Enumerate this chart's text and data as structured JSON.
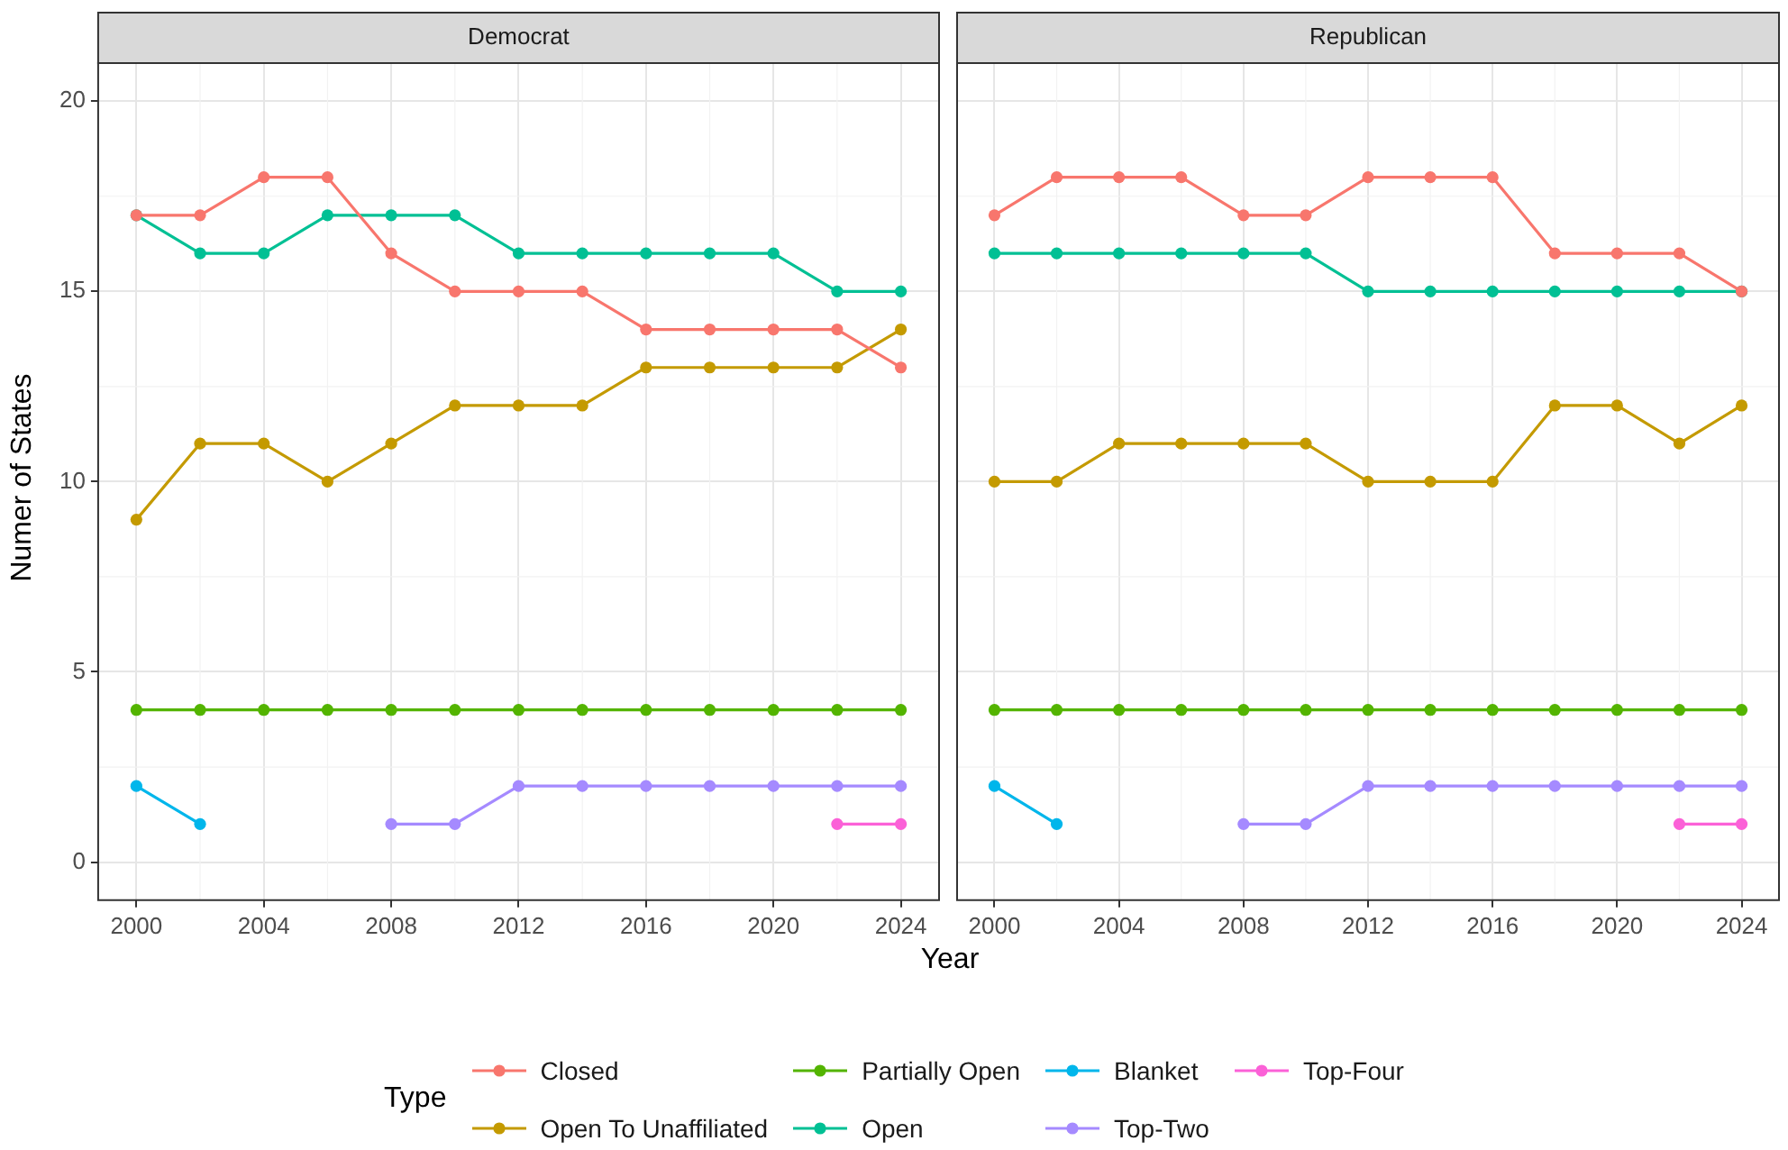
{
  "chart_data": [
    {
      "type": "line",
      "title": "Democrat",
      "xlabel": "Year",
      "ylabel": "Numer of States",
      "legend_title": "Type",
      "legend": "bottom",
      "marker": "circle",
      "line_style": "solid",
      "grid": true,
      "x": [
        2000,
        2002,
        2004,
        2006,
        2008,
        2010,
        2012,
        2014,
        2016,
        2018,
        2020,
        2022,
        2024
      ],
      "xlim": [
        1998.8,
        2025.2
      ],
      "xticks": [
        2000,
        2004,
        2008,
        2012,
        2016,
        2020,
        2024
      ],
      "ylim": [
        -1,
        21
      ],
      "yticks": [
        0,
        5,
        10,
        15,
        20
      ],
      "series": [
        {
          "name": "Closed",
          "color": "#f8766d",
          "values": [
            17,
            17,
            18,
            18,
            16,
            15,
            15,
            15,
            14,
            14,
            14,
            14,
            13
          ]
        },
        {
          "name": "Open To Unaffiliated",
          "color": "#c49a00",
          "values": [
            9,
            11,
            11,
            10,
            11,
            12,
            12,
            12,
            13,
            13,
            13,
            13,
            14
          ]
        },
        {
          "name": "Partially Open",
          "color": "#53b400",
          "values": [
            4,
            4,
            4,
            4,
            4,
            4,
            4,
            4,
            4,
            4,
            4,
            4,
            4
          ]
        },
        {
          "name": "Open",
          "color": "#00c094",
          "values": [
            17,
            16,
            16,
            17,
            17,
            17,
            16,
            16,
            16,
            16,
            16,
            15,
            15
          ]
        },
        {
          "name": "Blanket",
          "color": "#00b6eb",
          "values": [
            2,
            1,
            null,
            null,
            null,
            null,
            null,
            null,
            null,
            null,
            null,
            null,
            null
          ]
        },
        {
          "name": "Top-Two",
          "color": "#a58aff",
          "values": [
            null,
            null,
            null,
            null,
            1,
            1,
            2,
            2,
            2,
            2,
            2,
            2,
            2
          ]
        },
        {
          "name": "Top-Four",
          "color": "#fb61d7",
          "values": [
            null,
            null,
            null,
            null,
            null,
            null,
            null,
            null,
            null,
            null,
            null,
            1,
            1
          ]
        }
      ]
    },
    {
      "type": "line",
      "title": "Republican",
      "marker": "circle",
      "line_style": "solid",
      "grid": true,
      "tick_labels": "x",
      "x": [
        2000,
        2002,
        2004,
        2006,
        2008,
        2010,
        2012,
        2014,
        2016,
        2018,
        2020,
        2022,
        2024
      ],
      "xlim": [
        1998.8,
        2025.2
      ],
      "xticks": [
        2000,
        2004,
        2008,
        2012,
        2016,
        2020,
        2024
      ],
      "ylim": [
        -1,
        21
      ],
      "yticks": [
        0,
        5,
        10,
        15,
        20
      ],
      "series": [
        {
          "color": "#f8766d",
          "values": [
            17,
            18,
            18,
            18,
            17,
            17,
            18,
            18,
            18,
            16,
            16,
            16,
            15
          ]
        },
        {
          "color": "#c49a00",
          "values": [
            10,
            10,
            11,
            11,
            11,
            11,
            10,
            10,
            10,
            12,
            12,
            11,
            12
          ]
        },
        {
          "color": "#53b400",
          "values": [
            4,
            4,
            4,
            4,
            4,
            4,
            4,
            4,
            4,
            4,
            4,
            4,
            4
          ]
        },
        {
          "color": "#00c094",
          "values": [
            16,
            16,
            16,
            16,
            16,
            16,
            15,
            15,
            15,
            15,
            15,
            15,
            15
          ]
        },
        {
          "color": "#00b6eb",
          "values": [
            2,
            1,
            null,
            null,
            null,
            null,
            null,
            null,
            null,
            null,
            null,
            null,
            null
          ]
        },
        {
          "color": "#a58aff",
          "values": [
            null,
            null,
            null,
            null,
            1,
            1,
            2,
            2,
            2,
            2,
            2,
            2,
            2
          ]
        },
        {
          "color": "#fb61d7",
          "values": [
            null,
            null,
            null,
            null,
            null,
            null,
            null,
            null,
            null,
            null,
            null,
            1,
            1
          ]
        }
      ]
    }
  ]
}
